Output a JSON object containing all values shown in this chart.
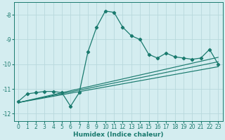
{
  "xlabel": "Humidex (Indice chaleur)",
  "bg_color": "#d4edf0",
  "line_color": "#1a7a6e",
  "grid_color": "#b8d8dc",
  "xlim": [
    -0.5,
    23.5
  ],
  "ylim": [
    -12.3,
    -7.5
  ],
  "yticks": [
    -12,
    -11,
    -10,
    -9,
    -8
  ],
  "xticks": [
    0,
    1,
    2,
    3,
    4,
    5,
    6,
    7,
    8,
    9,
    10,
    11,
    12,
    13,
    14,
    15,
    16,
    17,
    18,
    19,
    20,
    21,
    22,
    23
  ],
  "main_x": [
    0,
    1,
    2,
    3,
    4,
    5,
    6,
    7,
    8,
    9,
    10,
    11,
    12,
    13,
    14,
    15,
    16,
    17,
    18,
    19,
    20,
    21,
    22,
    23
  ],
  "main_y": [
    -11.5,
    -11.2,
    -11.15,
    -11.1,
    -11.1,
    -11.15,
    -11.7,
    -11.15,
    -9.5,
    -8.5,
    -7.85,
    -7.9,
    -8.5,
    -8.85,
    -9.0,
    -9.6,
    -9.75,
    -9.55,
    -9.7,
    -9.75,
    -9.8,
    -9.75,
    -9.4,
    -10.0
  ],
  "reg_lines": [
    {
      "x": [
        0,
        23
      ],
      "y": [
        -11.55,
        -10.1
      ]
    },
    {
      "x": [
        0,
        23
      ],
      "y": [
        -11.55,
        -9.9
      ]
    },
    {
      "x": [
        0,
        23
      ],
      "y": [
        -11.55,
        -9.72
      ]
    }
  ]
}
